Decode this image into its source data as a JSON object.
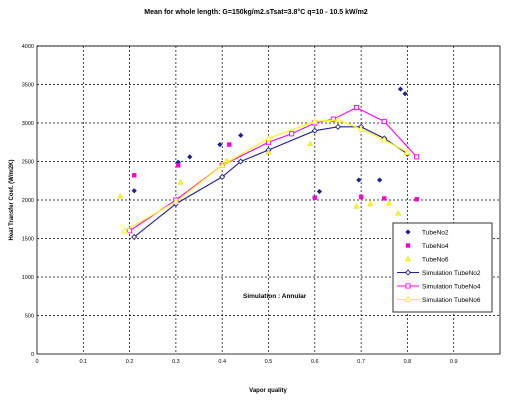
{
  "chart_data": {
    "type": "scatter",
    "title": "Mean for whole length: G=150kg/m2.sTsat=3.8°C q=10 - 10.5 kW/m2",
    "xlabel": "Vapor quality",
    "ylabel": "Heat Transfer Coef. (W/m2K)",
    "xlim": [
      0,
      1.0
    ],
    "ylim": [
      0,
      4000
    ],
    "x_ticks": [
      "0",
      "0.1",
      "0.2",
      "0.3",
      "0.4",
      "0.5",
      "0.6",
      "0.7",
      "0.8",
      "0.9"
    ],
    "y_ticks": [
      "0",
      "500",
      "1000",
      "1500",
      "2000",
      "2500",
      "3000",
      "3500",
      "4000"
    ],
    "x_tick_values": [
      0,
      0.1,
      0.2,
      0.3,
      0.4,
      0.5,
      0.6,
      0.7,
      0.8,
      0.9
    ],
    "y_tick_values": [
      0,
      500,
      1000,
      1500,
      2000,
      2500,
      3000,
      3500,
      4000
    ],
    "grid": true,
    "annotation": "Simulation : Annular",
    "legend_position": "right",
    "series": [
      {
        "name": "TubeNo2",
        "kind": "scatter",
        "marker": "diamond",
        "color": "#1f1f8f",
        "x": [
          0.21,
          0.305,
          0.33,
          0.395,
          0.44,
          0.61,
          0.695,
          0.74,
          0.785,
          0.795
        ],
        "y": [
          2120,
          2490,
          2560,
          2720,
          2840,
          2110,
          2260,
          2260,
          3440,
          3380
        ]
      },
      {
        "name": "TubeNo4",
        "kind": "scatter",
        "marker": "square",
        "color": "#ff00cc",
        "x": [
          0.21,
          0.305,
          0.415,
          0.6,
          0.7,
          0.75,
          0.82
        ],
        "y": [
          2320,
          2450,
          2720,
          2030,
          2040,
          2020,
          2010
        ]
      },
      {
        "name": "TubeNo6",
        "kind": "scatter",
        "marker": "triangle",
        "color": "#ffff00",
        "x": [
          0.18,
          0.31,
          0.41,
          0.5,
          0.59,
          0.69,
          0.72,
          0.76,
          0.78
        ],
        "y": [
          2050,
          2230,
          2510,
          2620,
          2730,
          1920,
          1950,
          1960,
          1830
        ]
      },
      {
        "name": "Simulation TubeNo2",
        "kind": "line",
        "marker": "diamond-open",
        "color": "#1f1f8f",
        "x": [
          0.21,
          0.3,
          0.4,
          0.44,
          0.5,
          0.6,
          0.65,
          0.7,
          0.75,
          0.8
        ],
        "y": [
          1520,
          1950,
          2300,
          2500,
          2650,
          2900,
          2950,
          2950,
          2800,
          2600
        ]
      },
      {
        "name": "Simulation TubeNo4",
        "kind": "line",
        "marker": "square-open",
        "color": "#ff00ff",
        "x": [
          0.2,
          0.3,
          0.4,
          0.5,
          0.55,
          0.6,
          0.64,
          0.69,
          0.75,
          0.82
        ],
        "y": [
          1600,
          2000,
          2450,
          2750,
          2860,
          3000,
          3050,
          3200,
          3020,
          2560
        ]
      },
      {
        "name": "Simulation TubeNo6",
        "kind": "line",
        "marker": "triangle-open",
        "color": "#ffff00",
        "x": [
          0.19,
          0.3,
          0.4,
          0.5,
          0.6,
          0.65,
          0.7,
          0.75,
          0.8
        ],
        "y": [
          1600,
          1980,
          2450,
          2800,
          3020,
          3040,
          2920,
          2780,
          2620
        ]
      }
    ]
  }
}
